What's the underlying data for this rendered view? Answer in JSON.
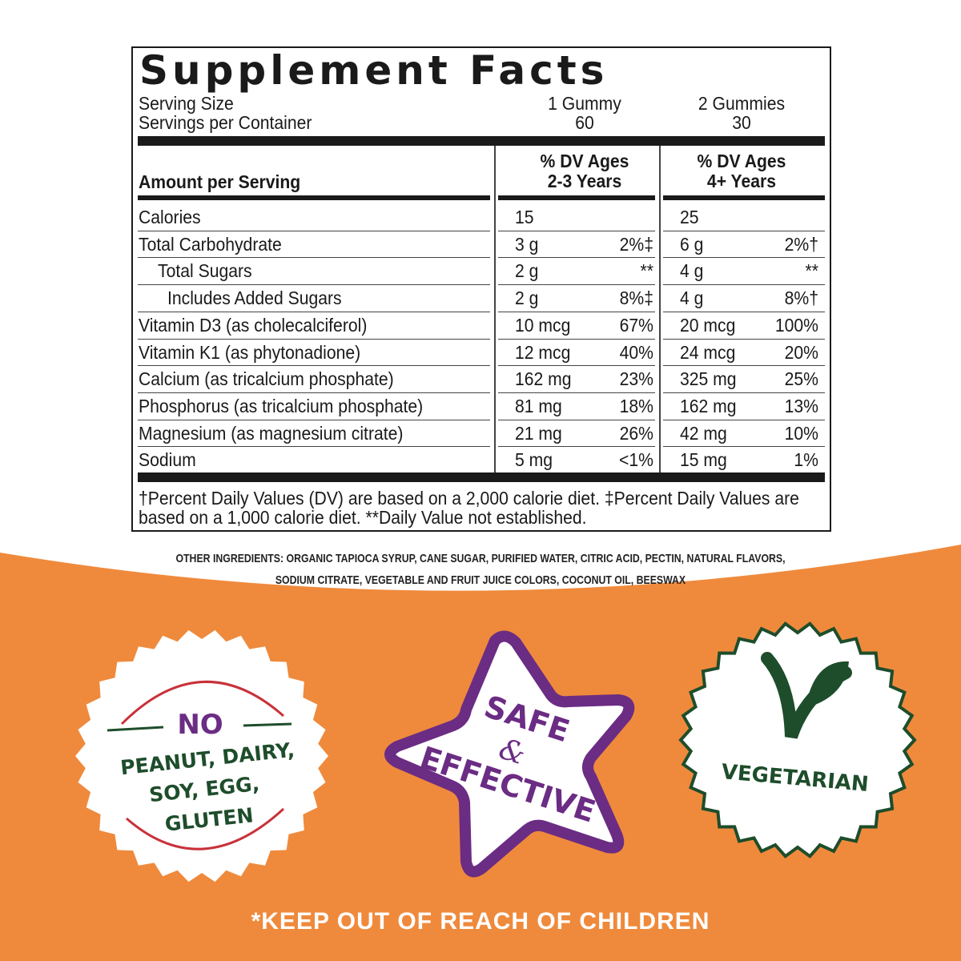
{
  "facts": {
    "title": "Supplement Facts",
    "serving_size_label": "Serving Size",
    "servings_per_container_label": "Servings per Container",
    "col1_serving": "1 Gummy",
    "col1_servings": "60",
    "col2_serving": "2 Gummies",
    "col2_servings": "30",
    "amount_per_serving": "Amount per Serving",
    "col1_header_line1": "% DV Ages",
    "col1_header_line2": "2-3 Years",
    "col2_header_line1": "% DV Ages",
    "col2_header_line2": "4+ Years",
    "rows": [
      {
        "name": "Calories",
        "a1": "15",
        "d1": "",
        "a2": "25",
        "d2": ""
      },
      {
        "name": "Total Carbohydrate",
        "a1": "3 g",
        "d1": "2%‡",
        "a2": "6 g",
        "d2": "2%†"
      },
      {
        "name": "Total Sugars",
        "a1": "2 g",
        "d1": "**",
        "a2": "4 g",
        "d2": "**"
      },
      {
        "name": "Includes Added Sugars",
        "a1": "2 g",
        "d1": "8%‡",
        "a2": "4 g",
        "d2": "8%†"
      },
      {
        "name": "Vitamin D3 (as cholecalciferol)",
        "a1": "10 mcg",
        "d1": "67%",
        "a2": "20 mcg",
        "d2": "100%"
      },
      {
        "name": "Vitamin K1 (as phytonadione)",
        "a1": "12 mcg",
        "d1": "40%",
        "a2": "24 mcg",
        "d2": "20%"
      },
      {
        "name": "Calcium (as tricalcium phosphate)",
        "a1": "162 mg",
        "d1": "23%",
        "a2": "325 mg",
        "d2": "25%"
      },
      {
        "name": "Phosphorus (as tricalcium phosphate)",
        "a1": "81 mg",
        "d1": "18%",
        "a2": "162 mg",
        "d2": "13%"
      },
      {
        "name": "Magnesium (as magnesium citrate)",
        "a1": "21 mg",
        "d1": "26%",
        "a2": "42 mg",
        "d2": "10%"
      },
      {
        "name": "Sodium",
        "a1": "5 mg",
        "d1": "<1%",
        "a2": "15 mg",
        "d2": "1%"
      }
    ],
    "footnote_line1": "†Percent Daily Values (DV) are based on a 2,000 calorie diet. ‡Percent Daily Values are",
    "footnote_line2": "based on a 1,000 calorie diet. **Daily Value not established."
  },
  "ingredients": {
    "line1": "OTHER INGREDIENTS: ORGANIC TAPIOCA SYRUP, CANE SUGAR, PURIFIED WATER, CITRIC ACID, PECTIN, NATURAL FLAVORS,",
    "line2": "SODIUM CITRATE, VEGETABLE AND FRUIT JUICE COLORS, COCONUT OIL, BEESWAX"
  },
  "badges": {
    "allergen": {
      "no": "NO",
      "line1": "PEANUT, DAIRY,",
      "line2": "SOY, EGG,",
      "line3": "GLUTEN"
    },
    "safe": {
      "line1": "SAFE",
      "amp": "&",
      "line2": "EFFECTIVE"
    },
    "vegetarian": {
      "label": "VEGETARIAN"
    }
  },
  "warning": "*KEEP OUT OF REACH OF CHILDREN",
  "colors": {
    "orange": "#EF8A3C",
    "purple": "#6B2C84",
    "green": "#1E4D2B",
    "red": "#C8323A"
  }
}
